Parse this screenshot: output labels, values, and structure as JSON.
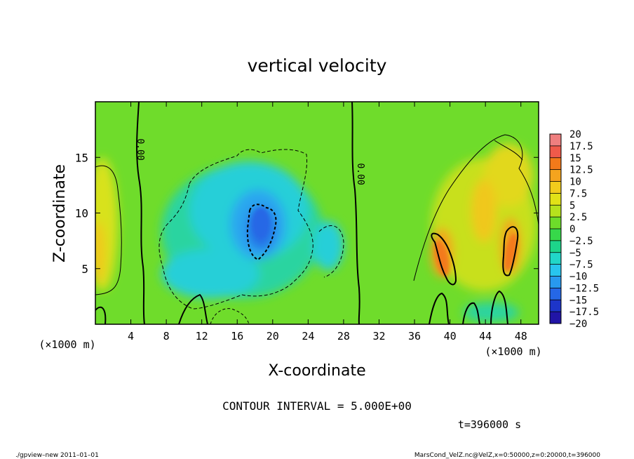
{
  "chart_data": {
    "type": "heatmap",
    "title": "vertical velocity",
    "xlabel": "X-coordinate",
    "ylabel": "Z-coordinate",
    "x_unit": "(×1000 m)",
    "z_unit": "(×1000 m)",
    "xlim": [
      0,
      50
    ],
    "ylim": [
      0,
      20
    ],
    "x_ticks": [
      4,
      8,
      12,
      16,
      20,
      24,
      28,
      32,
      36,
      40,
      44,
      48
    ],
    "y_ticks": [
      5,
      10,
      15
    ],
    "colorbar": {
      "labels": [
        "20",
        "17.5",
        "15",
        "12.5",
        "10",
        "7.5",
        "5",
        "2.5",
        "0",
        "−2.5",
        "−5",
        "−7.5",
        "−10",
        "−12.5",
        "−15",
        "−17.5",
        "−20"
      ],
      "levels": [
        20,
        17.5,
        15,
        12.5,
        10,
        7.5,
        5,
        2.5,
        0,
        -2.5,
        -5,
        -7.5,
        -10,
        -12.5,
        -15,
        -17.5,
        -20
      ],
      "colors": [
        "#f3a8a8",
        "#ef7f7f",
        "#f05a4a",
        "#f37a1a",
        "#f5a41e",
        "#f2cc1c",
        "#e2e217",
        "#b6e21d",
        "#6ddc2a",
        "#37d84a",
        "#1dd58a",
        "#21d6c8",
        "#28c5ee",
        "#2899ef",
        "#2567e6",
        "#1d35c9",
        "#2115a6",
        "#5d15b4"
      ],
      "interval_labels": [
        "20 to 17.5",
        "17.5 to 15",
        "15 to 12.5",
        "12.5 to 10",
        "10 to 7.5",
        "7.5 to 5",
        "5 to 2.5",
        "2.5 to 0",
        "0 to −2.5",
        "−2.5 to −5",
        "−5 to −7.5",
        "−7.5 to −10",
        "−10 to −12.5",
        "−12.5 to −15",
        "−15 to −17.5",
        "−17.5 to −20"
      ]
    },
    "contour_zero_labels": [
      "0.00",
      "0.00"
    ],
    "contour_interval_text": "CONTOUR INTERVAL = 5.000E+00",
    "time_text": "t=396000 s"
  },
  "footer": {
    "left": "./gpview–new   2011–01–01",
    "right": "MarsCond_VelZ.nc@VelZ,x=0:50000,z=0:20000,t=396000"
  }
}
